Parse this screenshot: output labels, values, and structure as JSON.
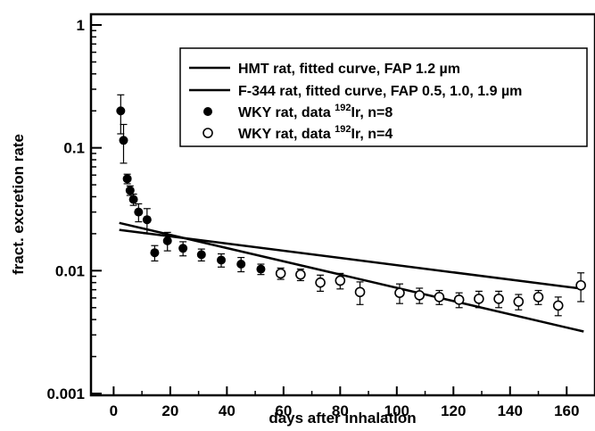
{
  "chart_data": {
    "type": "scatter",
    "xlabel": "days after inhalation",
    "ylabel": "fract. excretion rate",
    "xlim": [
      -8,
      170
    ],
    "ylim": [
      0.001,
      1
    ],
    "yscale": "log",
    "xticks": [
      0,
      20,
      40,
      60,
      80,
      100,
      120,
      140,
      160
    ],
    "yticks": [
      0.001,
      0.01,
      0.1,
      1
    ],
    "ytick_labels": [
      "0.001",
      "0.01",
      "0.1",
      "1"
    ],
    "grid": false,
    "legend_position": "top-right",
    "series": [
      {
        "name": "HMT rat, fitted curve, FAP 1.2 µm",
        "style": "line",
        "x": [
          2,
          166
        ],
        "y": [
          0.0215,
          0.0071
        ]
      },
      {
        "name": "F-344 rat, fitted curve, FAP 0.5, 1.0, 1.9 µm",
        "style": "line",
        "x": [
          2,
          166
        ],
        "y": [
          0.0245,
          0.0032
        ]
      },
      {
        "name": "WKY rat, data ",
        "name_sup": "192",
        "name_rest": "Ir, n=8",
        "style": "filled-circle",
        "x": [
          2.5,
          3.5,
          4.8,
          5.8,
          7.0,
          8.8,
          11.8,
          14.5,
          19.0,
          24.5,
          31.0,
          38.0,
          45.0,
          52.0
        ],
        "y": [
          0.2,
          0.115,
          0.056,
          0.045,
          0.038,
          0.03,
          0.026,
          0.014,
          0.0175,
          0.0152,
          0.0135,
          0.0122,
          0.0113,
          0.0103
        ],
        "err": [
          0.07,
          0.04,
          0.005,
          0.004,
          0.004,
          0.005,
          0.006,
          0.002,
          0.003,
          0.002,
          0.0015,
          0.0015,
          0.0015,
          0.001
        ]
      },
      {
        "name": "WKY rat, data ",
        "name_sup": "192",
        "name_rest": "Ir, n=4",
        "style": "open-circle",
        "x": [
          59.0,
          66.0,
          73.0,
          80.0,
          87.0,
          101.0,
          108.0,
          115.0,
          122.0,
          129.0,
          136.0,
          143.0,
          150.0,
          157.0,
          165.0
        ],
        "y": [
          0.0095,
          0.0093,
          0.008,
          0.0083,
          0.0067,
          0.0066,
          0.0063,
          0.0061,
          0.0058,
          0.0059,
          0.0059,
          0.0056,
          0.0061,
          0.0052,
          0.0076
        ],
        "err": [
          0.001,
          0.001,
          0.0012,
          0.0012,
          0.0014,
          0.0012,
          0.0009,
          0.0008,
          0.0008,
          0.0009,
          0.0009,
          0.0008,
          0.0008,
          0.0009,
          0.002
        ]
      }
    ]
  }
}
